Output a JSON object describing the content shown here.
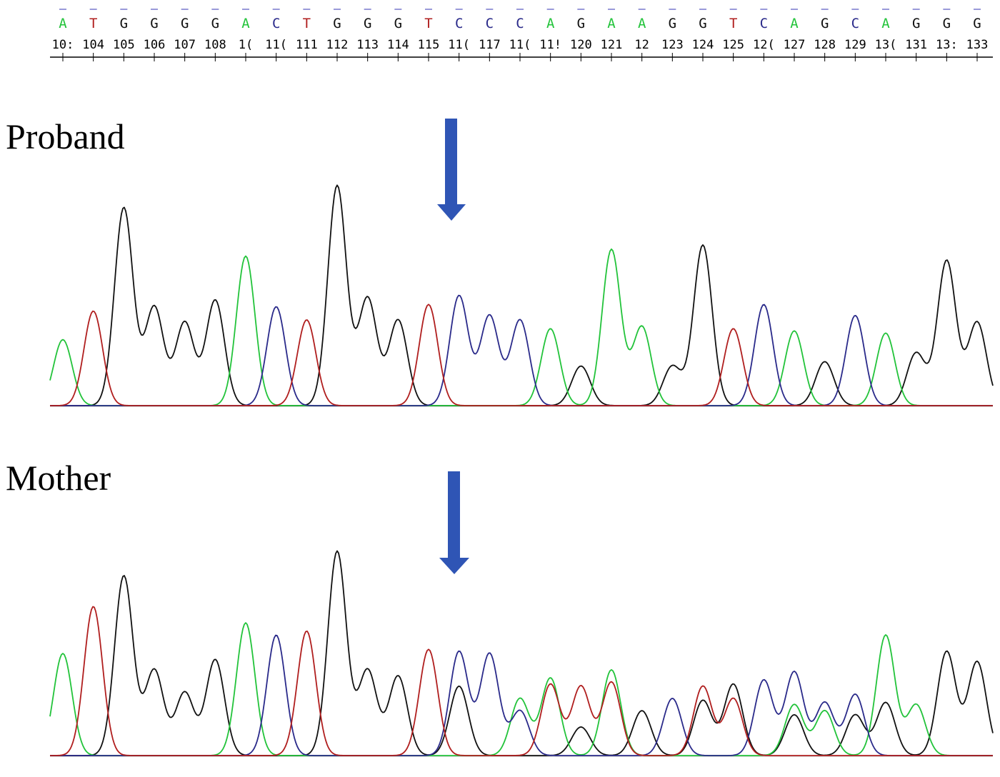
{
  "sequence": {
    "bases": [
      "A",
      "T",
      "G",
      "G",
      "G",
      "G",
      "A",
      "C",
      "T",
      "G",
      "G",
      "G",
      "T",
      "C",
      "C",
      "C",
      "A",
      "G",
      "A",
      "A",
      "G",
      "G",
      "T",
      "C",
      "A",
      "G",
      "C",
      "A",
      "G",
      "G",
      "G"
    ],
    "position_labels": [
      "10:",
      "104",
      "105",
      "106",
      "107",
      "108",
      "1(",
      "11(",
      "111",
      "112",
      "113",
      "114",
      "115",
      "11(",
      "117",
      "11(",
      "11!",
      "120",
      "121",
      "12",
      "123",
      "124",
      "125",
      "12(",
      "127",
      "128",
      "129",
      "13(",
      "131",
      "13:",
      "133"
    ],
    "base_colors": {
      "A": "#22c33a",
      "C": "#2a2a8a",
      "G": "#111111",
      "T": "#b01e1e"
    }
  },
  "panels": [
    {
      "label": "Proband"
    },
    {
      "label": "Mother"
    }
  ],
  "arrow_color": "#2f55b5",
  "chart_data": [
    {
      "type": "line",
      "title": "Proband",
      "peak_count": 31,
      "series": [
        {
          "base": "G",
          "color": "#111111",
          "peaks": [
            {
              "at": 2,
              "h": 0.9
            },
            {
              "at": 3,
              "h": 0.45
            },
            {
              "at": 4,
              "h": 0.38
            },
            {
              "at": 5,
              "h": 0.48
            },
            {
              "at": 9,
              "h": 1.0
            },
            {
              "at": 10,
              "h": 0.49
            },
            {
              "at": 11,
              "h": 0.39
            },
            {
              "at": 17,
              "h": 0.18
            },
            {
              "at": 20,
              "h": 0.18
            },
            {
              "at": 21,
              "h": 0.73
            },
            {
              "at": 25,
              "h": 0.2
            },
            {
              "at": 28,
              "h": 0.24
            },
            {
              "at": 29,
              "h": 0.66
            },
            {
              "at": 30,
              "h": 0.38
            }
          ]
        },
        {
          "base": "A",
          "color": "#22c33a",
          "peaks": [
            {
              "at": 0,
              "h": 0.3
            },
            {
              "at": 6,
              "h": 0.68
            },
            {
              "at": 16,
              "h": 0.35
            },
            {
              "at": 18,
              "h": 0.71
            },
            {
              "at": 19,
              "h": 0.36
            },
            {
              "at": 24,
              "h": 0.34
            },
            {
              "at": 27,
              "h": 0.33
            }
          ]
        },
        {
          "base": "C",
          "color": "#2a2a8a",
          "peaks": [
            {
              "at": 7,
              "h": 0.45
            },
            {
              "at": 13,
              "h": 0.5
            },
            {
              "at": 14,
              "h": 0.41
            },
            {
              "at": 15,
              "h": 0.39
            },
            {
              "at": 23,
              "h": 0.46
            },
            {
              "at": 26,
              "h": 0.41
            }
          ]
        },
        {
          "base": "T",
          "color": "#b01e1e",
          "peaks": [
            {
              "at": 1,
              "h": 0.43
            },
            {
              "at": 8,
              "h": 0.39
            },
            {
              "at": 12,
              "h": 0.46
            },
            {
              "at": 22,
              "h": 0.35
            }
          ]
        }
      ]
    },
    {
      "type": "line",
      "title": "Mother",
      "peak_count": 31,
      "series": [
        {
          "base": "G",
          "color": "#111111",
          "peaks": [
            {
              "at": 2,
              "h": 0.88
            },
            {
              "at": 3,
              "h": 0.42
            },
            {
              "at": 4,
              "h": 0.31
            },
            {
              "at": 5,
              "h": 0.47
            },
            {
              "at": 9,
              "h": 1.0
            },
            {
              "at": 10,
              "h": 0.42
            },
            {
              "at": 11,
              "h": 0.39
            },
            {
              "at": 13,
              "h": 0.34
            },
            {
              "at": 17,
              "h": 0.14
            },
            {
              "at": 19,
              "h": 0.22
            },
            {
              "at": 21,
              "h": 0.27
            },
            {
              "at": 22,
              "h": 0.35
            },
            {
              "at": 24,
              "h": 0.2
            },
            {
              "at": 26,
              "h": 0.2
            },
            {
              "at": 27,
              "h": 0.26
            },
            {
              "at": 29,
              "h": 0.51
            },
            {
              "at": 30,
              "h": 0.46
            }
          ]
        },
        {
          "base": "A",
          "color": "#22c33a",
          "peaks": [
            {
              "at": 0,
              "h": 0.5
            },
            {
              "at": 6,
              "h": 0.65
            },
            {
              "at": 15,
              "h": 0.28
            },
            {
              "at": 16,
              "h": 0.38
            },
            {
              "at": 18,
              "h": 0.42
            },
            {
              "at": 24,
              "h": 0.25
            },
            {
              "at": 25,
              "h": 0.22
            },
            {
              "at": 27,
              "h": 0.59
            },
            {
              "at": 28,
              "h": 0.25
            }
          ]
        },
        {
          "base": "C",
          "color": "#2a2a8a",
          "peaks": [
            {
              "at": 7,
              "h": 0.59
            },
            {
              "at": 13,
              "h": 0.51
            },
            {
              "at": 14,
              "h": 0.5
            },
            {
              "at": 15,
              "h": 0.22
            },
            {
              "at": 20,
              "h": 0.28
            },
            {
              "at": 23,
              "h": 0.37
            },
            {
              "at": 24,
              "h": 0.41
            },
            {
              "at": 25,
              "h": 0.26
            },
            {
              "at": 26,
              "h": 0.3
            }
          ]
        },
        {
          "base": "T",
          "color": "#b01e1e",
          "peaks": [
            {
              "at": 1,
              "h": 0.73
            },
            {
              "at": 8,
              "h": 0.61
            },
            {
              "at": 12,
              "h": 0.52
            },
            {
              "at": 16,
              "h": 0.35
            },
            {
              "at": 17,
              "h": 0.34
            },
            {
              "at": 18,
              "h": 0.36
            },
            {
              "at": 21,
              "h": 0.34
            },
            {
              "at": 22,
              "h": 0.28
            }
          ]
        }
      ]
    }
  ]
}
